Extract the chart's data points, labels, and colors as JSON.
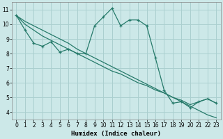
{
  "xlabel": "Humidex (Indice chaleur)",
  "bg_color": "#cce8e8",
  "grid_color": "#aacfcf",
  "line_color": "#267a6a",
  "line1_y": [
    10.6,
    9.6,
    8.7,
    8.5,
    8.8,
    8.1,
    8.3,
    8.0,
    8.0,
    9.9,
    10.5,
    11.1,
    9.9,
    10.3,
    10.3,
    9.9,
    7.7,
    5.5,
    4.6,
    4.7,
    4.3,
    4.7,
    4.9,
    4.6
  ],
  "line2_y": [
    10.6,
    10.2,
    9.9,
    9.6,
    9.3,
    9.0,
    8.7,
    8.3,
    8.0,
    7.7,
    7.4,
    7.1,
    6.8,
    6.5,
    6.2,
    5.9,
    5.6,
    5.3,
    5.0,
    4.7,
    4.4,
    4.1,
    3.8,
    3.6
  ],
  "line3_y": [
    10.6,
    10.0,
    9.6,
    9.2,
    8.9,
    8.6,
    8.3,
    8.0,
    7.7,
    7.4,
    7.1,
    6.8,
    6.6,
    6.3,
    6.0,
    5.8,
    5.5,
    5.3,
    5.0,
    4.8,
    4.5,
    4.7,
    4.9,
    4.6
  ],
  "ylim": [
    3.5,
    11.5
  ],
  "xlim": [
    -0.5,
    23.5
  ],
  "yticks": [
    4,
    5,
    6,
    7,
    8,
    9,
    10,
    11
  ],
  "xticks": [
    0,
    1,
    2,
    3,
    4,
    5,
    6,
    7,
    8,
    9,
    10,
    11,
    12,
    13,
    14,
    15,
    16,
    17,
    18,
    19,
    20,
    21,
    22,
    23
  ]
}
